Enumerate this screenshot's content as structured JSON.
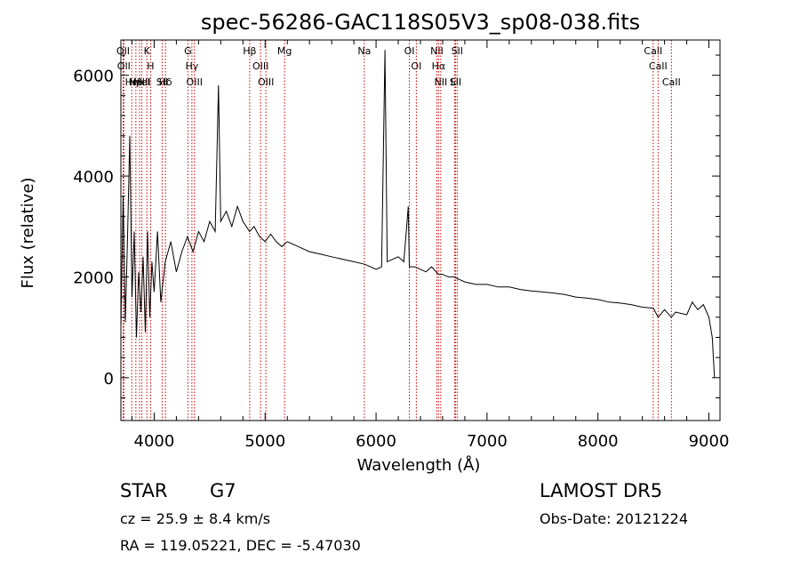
{
  "chart_data": {
    "type": "line",
    "title": "spec-56286-GAC118S05V3_sp08-038.fits",
    "xlabel": "Wavelength (Å)",
    "ylabel": "Flux (relative)",
    "xlim": [
      3700,
      9100
    ],
    "ylim": [
      -850,
      6700
    ],
    "x_ticks": [
      4000,
      5000,
      6000,
      7000,
      8000,
      9000
    ],
    "y_ticks": [
      0,
      2000,
      4000,
      6000
    ],
    "grid": false,
    "series": [
      {
        "x": [
          3700,
          3720,
          3740,
          3760,
          3780,
          3800,
          3820,
          3840,
          3860,
          3880,
          3900,
          3920,
          3940,
          3960,
          3980,
          4000,
          4030,
          4060,
          4100,
          4150,
          4200,
          4250,
          4300,
          4350,
          4400,
          4450,
          4500,
          4550,
          4580,
          4600,
          4650,
          4700,
          4750,
          4800,
          4860,
          4900,
          4950,
          5000,
          5050,
          5100,
          5150,
          5200,
          5300,
          5400,
          5500,
          5600,
          5700,
          5800,
          5900,
          6000,
          6050,
          6080,
          6100,
          6150,
          6200,
          6250,
          6290,
          6300,
          6350,
          6400,
          6450,
          6500,
          6563,
          6600,
          6650,
          6700,
          6750,
          6800,
          6900,
          7000,
          7100,
          7200,
          7300,
          7400,
          7500,
          7600,
          7700,
          7800,
          7900,
          8000,
          8100,
          8200,
          8300,
          8400,
          8500,
          8542,
          8600,
          8662,
          8700,
          8800,
          8850,
          8900,
          8950,
          9000,
          9030,
          9050
        ],
        "y": [
          1000,
          3600,
          1100,
          2800,
          4800,
          1600,
          2900,
          800,
          2100,
          1300,
          2400,
          900,
          2900,
          1200,
          2300,
          1700,
          2900,
          1500,
          2300,
          2700,
          2100,
          2500,
          2800,
          2500,
          2900,
          2700,
          3100,
          2900,
          5800,
          3100,
          3300,
          3000,
          3400,
          3100,
          2900,
          3000,
          2800,
          2700,
          2850,
          2700,
          2600,
          2700,
          2600,
          2500,
          2450,
          2400,
          2350,
          2300,
          2250,
          2150,
          2200,
          6500,
          2300,
          2350,
          2400,
          2300,
          3400,
          2200,
          2200,
          2150,
          2100,
          2200,
          2050,
          2050,
          2000,
          2000,
          1950,
          1900,
          1850,
          1850,
          1800,
          1800,
          1750,
          1720,
          1700,
          1680,
          1650,
          1600,
          1580,
          1550,
          1500,
          1480,
          1450,
          1400,
          1380,
          1200,
          1350,
          1200,
          1300,
          1250,
          1500,
          1350,
          1450,
          1200,
          800,
          0
        ]
      }
    ],
    "lines": [
      {
        "x": 3720,
        "label": "OII"
      },
      {
        "x": 3727,
        "label": "OII"
      },
      {
        "x": 3798,
        "label": "Hη"
      },
      {
        "x": 3835,
        "label": "Hθ"
      },
      {
        "x": 3869,
        "label": "NeIII"
      },
      {
        "x": 3889,
        "label": "HeI"
      },
      {
        "x": 3934,
        "label": "K"
      },
      {
        "x": 3968,
        "label": "H"
      },
      {
        "x": 4072,
        "label": "SII"
      },
      {
        "x": 4102,
        "label": "Hδ"
      },
      {
        "x": 4304,
        "label": "G"
      },
      {
        "x": 4340,
        "label": "Hγ"
      },
      {
        "x": 4363,
        "label": "OIII"
      },
      {
        "x": 4861,
        "label": "Hβ"
      },
      {
        "x": 4959,
        "label": "OIII"
      },
      {
        "x": 5007,
        "label": "OIII"
      },
      {
        "x": 5175,
        "label": "Mg"
      },
      {
        "x": 5894,
        "label": "Na"
      },
      {
        "x": 6300,
        "label": "OI"
      },
      {
        "x": 6363,
        "label": "OI"
      },
      {
        "x": 6548,
        "label": "NII"
      },
      {
        "x": 6563,
        "label": "Hα"
      },
      {
        "x": 6583,
        "label": "NII"
      },
      {
        "x": 6707,
        "label": "Li"
      },
      {
        "x": 6716,
        "label": "SII"
      },
      {
        "x": 6731,
        "label": "SII"
      },
      {
        "x": 8498,
        "label": "CaII"
      },
      {
        "x": 8542,
        "label": "CaII"
      },
      {
        "x": 8662,
        "label": "CaII"
      }
    ]
  },
  "info": {
    "object_class": "STAR",
    "subclass": "G7",
    "survey": "LAMOST DR5",
    "redshift": "cz = 25.9 ± 8.4 km/s",
    "obs_date": "Obs-Date: 20121224",
    "coords": "RA = 119.05221, DEC =  -5.47030"
  },
  "colors": {
    "axes": "#000000",
    "spectrum": "#000000",
    "line_marker": "#cc0000",
    "background": "#ffffff"
  }
}
